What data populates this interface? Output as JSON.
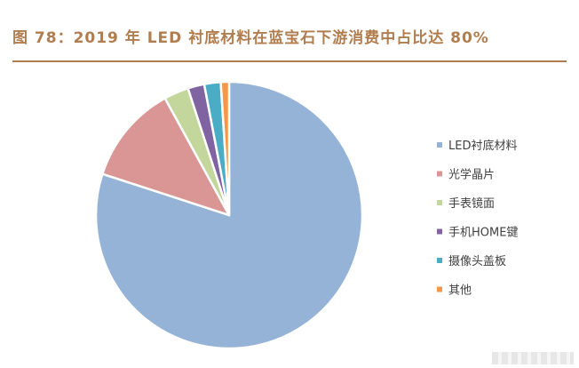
{
  "header": {
    "title": "图 78：2019 年 LED 衬底材料在蓝宝石下游消费中占比达 80%"
  },
  "chart_data": {
    "type": "pie",
    "title": "",
    "legend_position": "right",
    "slices": [
      {
        "label": "LED衬底材料",
        "value": 80,
        "color": "#95b3d7"
      },
      {
        "label": "光学晶片",
        "value": 12,
        "color": "#d99694"
      },
      {
        "label": "手表镜面",
        "value": 3,
        "color": "#c3d69b"
      },
      {
        "label": "手机HOME键",
        "value": 2,
        "color": "#8064a2"
      },
      {
        "label": "摄像头盖板",
        "value": 2,
        "color": "#4bacc6"
      },
      {
        "label": "其他",
        "value": 1,
        "color": "#f79646"
      }
    ]
  }
}
